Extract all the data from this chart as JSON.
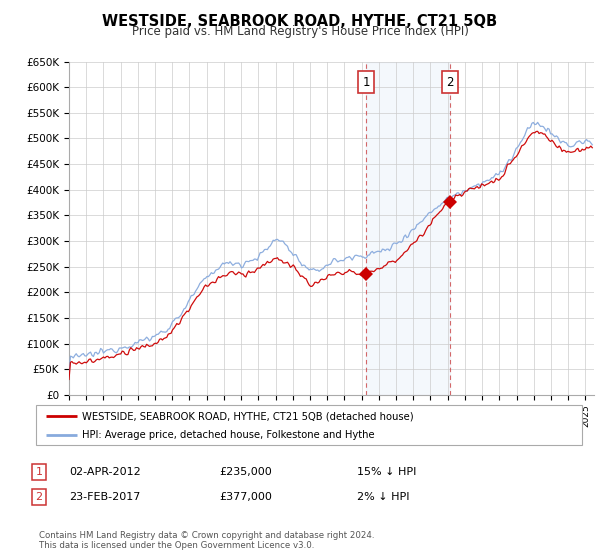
{
  "title": "WESTSIDE, SEABROOK ROAD, HYTHE, CT21 5QB",
  "subtitle": "Price paid vs. HM Land Registry's House Price Index (HPI)",
  "ylim": [
    0,
    650000
  ],
  "yticks": [
    0,
    50000,
    100000,
    150000,
    200000,
    250000,
    300000,
    350000,
    400000,
    450000,
    500000,
    550000,
    600000,
    650000
  ],
  "ytick_labels": [
    "£0",
    "£50K",
    "£100K",
    "£150K",
    "£200K",
    "£250K",
    "£300K",
    "£350K",
    "£400K",
    "£450K",
    "£500K",
    "£550K",
    "£600K",
    "£650K"
  ],
  "xlim_start": 1995.0,
  "xlim_end": 2025.5,
  "sale1_x": 2012.25,
  "sale1_y": 235000,
  "sale1_label": "1",
  "sale1_date": "02-APR-2012",
  "sale1_price": "£235,000",
  "sale1_hpi": "15% ↓ HPI",
  "sale2_x": 2017.12,
  "sale2_y": 377000,
  "sale2_label": "2",
  "sale2_date": "23-FEB-2017",
  "sale2_price": "£377,000",
  "sale2_hpi": "2% ↓ HPI",
  "property_color": "#cc0000",
  "hpi_color": "#88aadd",
  "hpi_fill_color": "#ddeeff",
  "background_color": "#ffffff",
  "grid_color": "#cccccc",
  "legend_label_property": "WESTSIDE, SEABROOK ROAD, HYTHE, CT21 5QB (detached house)",
  "legend_label_hpi": "HPI: Average price, detached house, Folkestone and Hythe",
  "footnote": "Contains HM Land Registry data © Crown copyright and database right 2024.\nThis data is licensed under the Open Government Licence v3.0.",
  "title_fontsize": 11,
  "subtitle_fontsize": 9
}
